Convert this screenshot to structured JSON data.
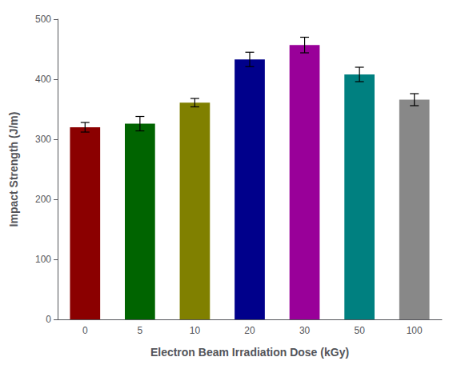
{
  "chart_data": {
    "type": "bar",
    "xlabel": "Electron Beam Irradiation Dose (kGy)",
    "ylabel": "Impact Strength (J/m)",
    "categories": [
      "0",
      "5",
      "10",
      "20",
      "30",
      "50",
      "100"
    ],
    "values": [
      320,
      326,
      361,
      433,
      457,
      408,
      366
    ],
    "errors": [
      8,
      12,
      7,
      12,
      13,
      12,
      10
    ],
    "colors": [
      "#8B0000",
      "#006400",
      "#808000",
      "#00008B",
      "#990099",
      "#008080",
      "#888888"
    ],
    "ylim": [
      0,
      500
    ],
    "yticks": [
      0,
      100,
      200,
      300,
      400,
      500
    ],
    "grid": false
  }
}
